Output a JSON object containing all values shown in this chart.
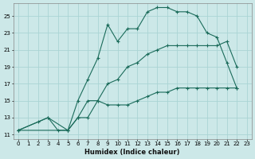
{
  "xlabel": "Humidex (Indice chaleur)",
  "bg_color": "#cce8e8",
  "grid_color": "#aad4d4",
  "line_color": "#1a6b5a",
  "xlim": [
    -0.5,
    23.5
  ],
  "ylim": [
    10.5,
    26.5
  ],
  "xticks": [
    0,
    1,
    2,
    3,
    4,
    5,
    6,
    7,
    8,
    9,
    10,
    11,
    12,
    13,
    14,
    15,
    16,
    17,
    18,
    19,
    20,
    21,
    22,
    23
  ],
  "yticks": [
    11,
    13,
    15,
    17,
    19,
    21,
    23,
    25
  ],
  "line1_x": [
    0,
    2,
    3,
    4,
    5,
    6,
    7,
    8,
    9,
    10,
    11,
    12,
    13,
    14,
    15,
    16,
    17,
    18,
    19,
    20,
    21,
    22
  ],
  "line1_y": [
    11.5,
    12.5,
    13.0,
    11.5,
    11.5,
    15.0,
    17.5,
    20.0,
    24.0,
    22.0,
    23.5,
    23.5,
    25.5,
    26.0,
    26.0,
    25.5,
    25.5,
    25.0,
    23.0,
    22.5,
    19.5,
    16.5
  ],
  "line2_x": [
    0,
    3,
    5,
    6,
    7,
    8,
    9,
    10,
    11,
    12,
    13,
    14,
    15,
    16,
    17,
    18,
    19,
    20,
    21,
    22
  ],
  "line2_y": [
    11.5,
    13.0,
    11.5,
    13.0,
    15.0,
    15.0,
    17.0,
    17.5,
    19.0,
    19.5,
    20.5,
    21.0,
    21.5,
    21.5,
    21.5,
    21.5,
    21.5,
    21.5,
    22.0,
    19.0
  ],
  "line3_x": [
    0,
    5,
    6,
    7,
    8,
    9,
    10,
    11,
    12,
    13,
    14,
    15,
    16,
    17,
    18,
    19,
    20,
    21,
    22
  ],
  "line3_y": [
    11.5,
    11.5,
    13.0,
    13.0,
    15.0,
    14.5,
    14.5,
    14.5,
    15.0,
    15.5,
    16.0,
    16.0,
    16.5,
    16.5,
    16.5,
    16.5,
    16.5,
    16.5,
    16.5
  ]
}
